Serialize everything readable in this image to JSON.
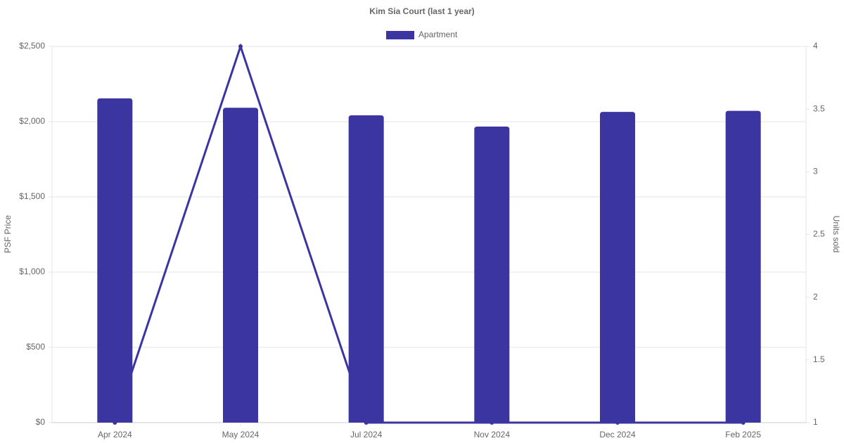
{
  "chart_data": {
    "type": "bar_line",
    "title": "Kim Sia Court (last 1 year)",
    "categories": [
      "Apr 2024",
      "May 2024",
      "Jul 2024",
      "Nov 2024",
      "Dec 2024",
      "Feb 2025"
    ],
    "series": [
      {
        "name": "Apartment",
        "type": "bar",
        "color": "#3a35a0",
        "values": [
          2155,
          2092,
          2042,
          1967,
          2065,
          2072
        ]
      },
      {
        "type": "line",
        "axis": "y2",
        "color": "#3a35a0",
        "values": [
          1,
          4,
          1,
          1,
          1,
          1
        ]
      }
    ],
    "ylabel": "PSF Price",
    "y2label": "Units sold",
    "ylim": [
      0,
      2500
    ],
    "yticks": [
      {
        "value": 0,
        "label": "$0"
      },
      {
        "value": 500,
        "label": "$500"
      },
      {
        "value": 1000,
        "label": "$1,000"
      },
      {
        "value": 1500,
        "label": "$1,500"
      },
      {
        "value": 2000,
        "label": "$2,000"
      },
      {
        "value": 2500,
        "label": "$2,500"
      }
    ],
    "y2lim": [
      1,
      4
    ],
    "y2ticks": [
      1,
      1.5,
      2,
      2.5,
      3,
      3.5,
      4
    ],
    "grid": true,
    "legend": "top"
  }
}
